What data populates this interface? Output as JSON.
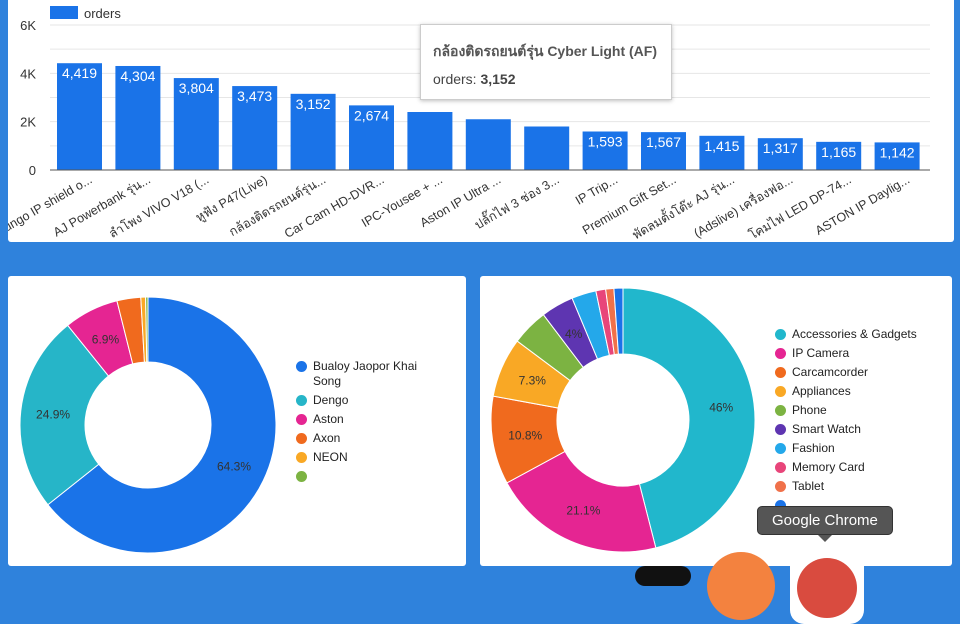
{
  "chart_data": [
    {
      "type": "bar",
      "legend": "orders",
      "legend_position": "top-left",
      "ylim": [
        0,
        6000
      ],
      "yticks": [
        "0",
        "2K",
        "4K",
        "6K"
      ],
      "grid": true,
      "color": "#1a73e8",
      "categories": [
        "Bungo IP shield o...",
        "AJ Powerbank รุ่น...",
        "ลำโพง VIVO V18 (...",
        "หูฟัง P47(Live)",
        "กล้องติดรถยนต์รุ่น...",
        "Car Cam HD-DVR...",
        "IPC-Yousee + ...",
        "Aston IP Ultra ...",
        "ปลั๊กไฟ 3 ช่อง 3...",
        "IP Trip...",
        "Premium Gift Set...",
        "พัดลมตั้งโต๊ะ AJ รุ่น...",
        "(Adslive) เครื่องฟอ...",
        "โคมไฟ LED DP-74...",
        "ASTON IP Daylig..."
      ],
      "values": [
        4419,
        4304,
        3804,
        3473,
        3152,
        2674,
        2400,
        2100,
        1800,
        1593,
        1567,
        1415,
        1317,
        1165,
        1142
      ],
      "data_labels": [
        "4,419",
        "4,304",
        "3,804",
        "3,473",
        "3,152",
        "2,674",
        "",
        "",
        "",
        "1,593",
        "1,567",
        "1,415",
        "1,317",
        "1,165",
        "1,142"
      ]
    },
    {
      "type": "pie",
      "donut": true,
      "legend_position": "right",
      "labels": [
        "Bualoy Jaopor Khai Song",
        "Dengo",
        "Aston",
        "Axon",
        "NEON",
        ""
      ],
      "values": [
        64.3,
        24.9,
        6.9,
        3.0,
        0.6,
        0.3
      ],
      "data_labels": [
        "64.3%",
        "24.9%",
        "6.9%",
        "",
        "",
        ""
      ],
      "colors": [
        "#1a73e8",
        "#26b5c8",
        "#e52592",
        "#f06a1e",
        "#f9a825",
        "#7cb342"
      ]
    },
    {
      "type": "pie",
      "donut": true,
      "legend_position": "right",
      "labels": [
        "Accessories & Gadgets",
        "IP Camera",
        "Carcamcorder",
        "Appliances",
        "Phone",
        "Smart Watch",
        "Fashion",
        "Memory Card",
        "Tablet",
        ""
      ],
      "values": [
        46,
        21.1,
        10.8,
        7.3,
        4.5,
        4,
        3,
        1.2,
        1,
        1.1
      ],
      "data_labels": [
        "46%",
        "21.1%",
        "10.8%",
        "7.3%",
        "",
        "4%",
        "",
        "",
        "",
        ""
      ],
      "colors": [
        "#21b7cc",
        "#e52592",
        "#f06a1e",
        "#f9a825",
        "#7cb342",
        "#5e35b1",
        "#24a8ea",
        "#e8457a",
        "#f0714a",
        "#1a73e8"
      ]
    }
  ],
  "tooltip": {
    "title": "กล้องติดรถยนต์รุ่น Cyber Light (AF)",
    "label": "orders: ",
    "value": "3,152"
  },
  "dock_tooltip": "Google Chrome"
}
